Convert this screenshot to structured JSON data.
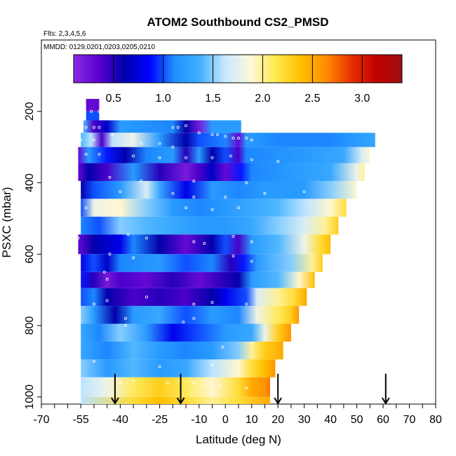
{
  "chart_data": {
    "type": "heatmap",
    "title": "ATOM2 Southbound CS2_PMSD",
    "flights_label": "Flts: 2,3,4,5,6",
    "dates_label": "MMDD: 0129,0201,0203,0205,0210",
    "xlabel": "Latitude (deg N)",
    "ylabel": "PSXC (mbar)",
    "xlim": [
      -70,
      80
    ],
    "ylim": [
      1020,
      0
    ],
    "x_ticks": [
      -70,
      -55,
      -40,
      -25,
      -10,
      0,
      10,
      20,
      30,
      40,
      50,
      60,
      70,
      80
    ],
    "y_ticks": [
      200,
      400,
      600,
      800,
      1000
    ],
    "colorbar": {
      "range": [
        0.1,
        3.4
      ],
      "ticks": [
        0.5,
        1.0,
        1.5,
        2.0,
        2.5,
        3.0
      ],
      "tick_labels": [
        "0.5",
        "1.0",
        "1.5",
        "2.0",
        "2.5",
        "3.0"
      ],
      "colors": [
        "#8a2be2",
        "#5a00d0",
        "#0000aa",
        "#0000ff",
        "#1e90ff",
        "#40b0ff",
        "#c8e8ff",
        "#fff8dc",
        "#ffe84d",
        "#ffc000",
        "#ff8c00",
        "#e83000",
        "#c00000",
        "#a01010"
      ]
    },
    "arrows_at_latitude": [
      -42,
      -17,
      20,
      61
    ],
    "layers": [
      {
        "p_top": 165,
        "p_bot": 200,
        "x_start": -53,
        "x_end": -48,
        "segments": [
          [
            -53,
            0.3
          ],
          [
            -48,
            0.3
          ]
        ]
      },
      {
        "p_top": 200,
        "p_bot": 225,
        "x_start": -53,
        "x_end": -48,
        "segments": [
          [
            -53,
            1.0
          ],
          [
            -48,
            1.0
          ]
        ]
      },
      {
        "p_top": 225,
        "p_bot": 260,
        "x_start": -54,
        "x_end": 6,
        "segments": [
          [
            -54,
            1.4
          ],
          [
            -50,
            0.4
          ],
          [
            -45,
            0.7
          ],
          [
            -40,
            1.2
          ],
          [
            -20,
            1.1
          ],
          [
            -15,
            0.6
          ],
          [
            -10,
            0.2
          ],
          [
            -5,
            1.2
          ],
          [
            0,
            1.2
          ],
          [
            6,
            1.2
          ]
        ]
      },
      {
        "p_top": 260,
        "p_bot": 300,
        "x_start": -55,
        "x_end": 57,
        "segments": [
          [
            -55,
            1.4
          ],
          [
            -51,
            1.6
          ],
          [
            -47,
            0.4
          ],
          [
            -43,
            1.6
          ],
          [
            -35,
            1.8
          ],
          [
            -25,
            1.2
          ],
          [
            -15,
            0.6
          ],
          [
            -10,
            1.0
          ],
          [
            0,
            1.1
          ],
          [
            5,
            0.3
          ],
          [
            8,
            1.2
          ],
          [
            20,
            1.1
          ],
          [
            40,
            1.1
          ],
          [
            50,
            1.2
          ],
          [
            57,
            1.3
          ]
        ]
      },
      {
        "p_top": 300,
        "p_bot": 345,
        "x_start": -56,
        "x_end": 55,
        "segments": [
          [
            -56,
            0.3
          ],
          [
            -52,
            1.2
          ],
          [
            -45,
            0.9
          ],
          [
            -38,
            0.6
          ],
          [
            -30,
            1.1
          ],
          [
            -20,
            1.2
          ],
          [
            -15,
            0.5
          ],
          [
            -10,
            1.2
          ],
          [
            -5,
            0.6
          ],
          [
            0,
            1.0
          ],
          [
            5,
            0.4
          ],
          [
            8,
            1.1
          ],
          [
            30,
            1.2
          ],
          [
            45,
            1.3
          ],
          [
            52,
            1.7
          ],
          [
            55,
            1.9
          ]
        ]
      },
      {
        "p_top": 345,
        "p_bot": 395,
        "x_start": -56,
        "x_end": 53,
        "segments": [
          [
            -56,
            0.3
          ],
          [
            -52,
            0.6
          ],
          [
            -45,
            0.4
          ],
          [
            -35,
            1.2
          ],
          [
            -25,
            0.5
          ],
          [
            -15,
            0.2
          ],
          [
            -10,
            0.4
          ],
          [
            -5,
            0.7
          ],
          [
            0,
            0.3
          ],
          [
            6,
            0.9
          ],
          [
            10,
            1.1
          ],
          [
            25,
            1.2
          ],
          [
            40,
            1.3
          ],
          [
            50,
            1.8
          ],
          [
            53,
            2.0
          ]
        ]
      },
      {
        "p_top": 395,
        "p_bot": 445,
        "x_start": -55,
        "x_end": 50,
        "segments": [
          [
            -55,
            0.6
          ],
          [
            -50,
            1.0
          ],
          [
            -40,
            1.2
          ],
          [
            -30,
            1.7
          ],
          [
            -25,
            1.3
          ],
          [
            -15,
            0.8
          ],
          [
            -5,
            1.2
          ],
          [
            5,
            1.1
          ],
          [
            15,
            1.2
          ],
          [
            30,
            1.2
          ],
          [
            40,
            1.5
          ],
          [
            50,
            1.9
          ]
        ]
      },
      {
        "p_top": 445,
        "p_bot": 495,
        "x_start": -55,
        "x_end": 46,
        "segments": [
          [
            -55,
            1.0
          ],
          [
            -50,
            1.8
          ],
          [
            -40,
            1.9
          ],
          [
            -30,
            1.5
          ],
          [
            -20,
            1.2
          ],
          [
            -10,
            1.1
          ],
          [
            0,
            1.2
          ],
          [
            10,
            1.3
          ],
          [
            20,
            1.4
          ],
          [
            30,
            1.6
          ],
          [
            40,
            1.9
          ],
          [
            46,
            2.2
          ]
        ]
      },
      {
        "p_top": 495,
        "p_bot": 545,
        "x_start": -55,
        "x_end": 43,
        "segments": [
          [
            -55,
            1.1
          ],
          [
            -48,
            1.0
          ],
          [
            -40,
            1.5
          ],
          [
            -30,
            1.4
          ],
          [
            -20,
            1.3
          ],
          [
            -10,
            1.2
          ],
          [
            0,
            1.2
          ],
          [
            10,
            1.3
          ],
          [
            20,
            1.5
          ],
          [
            30,
            1.7
          ],
          [
            38,
            2.0
          ],
          [
            43,
            2.3
          ]
        ]
      },
      {
        "p_top": 545,
        "p_bot": 600,
        "x_start": -56,
        "x_end": 40,
        "segments": [
          [
            -56,
            0.3
          ],
          [
            -50,
            0.6
          ],
          [
            -40,
            0.8
          ],
          [
            -35,
            1.1
          ],
          [
            -25,
            0.6
          ],
          [
            -15,
            0.3
          ],
          [
            -5,
            0.6
          ],
          [
            0,
            1.0
          ],
          [
            5,
            0.4
          ],
          [
            10,
            1.2
          ],
          [
            20,
            1.4
          ],
          [
            30,
            1.8
          ],
          [
            36,
            2.2
          ],
          [
            40,
            2.4
          ]
        ]
      },
      {
        "p_top": 600,
        "p_bot": 650,
        "x_start": -55,
        "x_end": 37,
        "segments": [
          [
            -55,
            0.8
          ],
          [
            -50,
            1.0
          ],
          [
            -45,
            0.7
          ],
          [
            -40,
            1.1
          ],
          [
            -25,
            1.2
          ],
          [
            -15,
            1.0
          ],
          [
            -5,
            1.1
          ],
          [
            2,
            0.5
          ],
          [
            7,
            0.9
          ],
          [
            12,
            1.2
          ],
          [
            25,
            1.5
          ],
          [
            33,
            2.0
          ],
          [
            37,
            2.3
          ]
        ]
      },
      {
        "p_top": 650,
        "p_bot": 695,
        "x_start": -55,
        "x_end": 34,
        "segments": [
          [
            -55,
            0.9
          ],
          [
            -50,
            0.5
          ],
          [
            -45,
            0.2
          ],
          [
            -40,
            0.4
          ],
          [
            -30,
            0.3
          ],
          [
            -20,
            0.5
          ],
          [
            -10,
            0.3
          ],
          [
            0,
            0.5
          ],
          [
            5,
            0.6
          ],
          [
            10,
            1.2
          ],
          [
            20,
            1.4
          ],
          [
            28,
            1.9
          ],
          [
            34,
            2.4
          ]
        ]
      },
      {
        "p_top": 695,
        "p_bot": 745,
        "x_start": -55,
        "x_end": 31,
        "segments": [
          [
            -55,
            1.0
          ],
          [
            -50,
            1.1
          ],
          [
            -45,
            0.6
          ],
          [
            -35,
            0.4
          ],
          [
            -25,
            0.5
          ],
          [
            -15,
            0.4
          ],
          [
            -5,
            0.6
          ],
          [
            0,
            0.8
          ],
          [
            8,
            1.0
          ],
          [
            12,
            1.7
          ],
          [
            20,
            2.0
          ],
          [
            26,
            2.2
          ],
          [
            31,
            2.5
          ]
        ]
      },
      {
        "p_top": 745,
        "p_bot": 795,
        "x_start": -55,
        "x_end": 28,
        "segments": [
          [
            -55,
            1.5
          ],
          [
            -50,
            1.2
          ],
          [
            -42,
            0.6
          ],
          [
            -35,
            1.2
          ],
          [
            -25,
            1.3
          ],
          [
            -15,
            1.0
          ],
          [
            -5,
            1.2
          ],
          [
            5,
            1.1
          ],
          [
            12,
            1.8
          ],
          [
            20,
            2.1
          ],
          [
            25,
            2.3
          ],
          [
            28,
            2.6
          ]
        ]
      },
      {
        "p_top": 795,
        "p_bot": 845,
        "x_start": -55,
        "x_end": 25,
        "segments": [
          [
            -55,
            1.3
          ],
          [
            -48,
            1.1
          ],
          [
            -40,
            1.5
          ],
          [
            -30,
            1.2
          ],
          [
            -20,
            0.8
          ],
          [
            -10,
            1.0
          ],
          [
            0,
            1.2
          ],
          [
            10,
            1.3
          ],
          [
            15,
            1.8
          ],
          [
            20,
            2.3
          ],
          [
            25,
            2.6
          ]
        ]
      },
      {
        "p_top": 845,
        "p_bot": 895,
        "x_start": -55,
        "x_end": 22,
        "segments": [
          [
            -55,
            1.3
          ],
          [
            -45,
            1.1
          ],
          [
            -35,
            1.4
          ],
          [
            -25,
            1.2
          ],
          [
            -15,
            1.1
          ],
          [
            -5,
            1.2
          ],
          [
            5,
            1.5
          ],
          [
            10,
            2.0
          ],
          [
            15,
            2.3
          ],
          [
            22,
            2.5
          ]
        ]
      },
      {
        "p_top": 895,
        "p_bot": 945,
        "x_start": -55,
        "x_end": 19,
        "segments": [
          [
            -55,
            1.5
          ],
          [
            -45,
            1.2
          ],
          [
            -35,
            1.4
          ],
          [
            -25,
            1.2
          ],
          [
            -15,
            1.3
          ],
          [
            -5,
            1.6
          ],
          [
            5,
            1.9
          ],
          [
            10,
            2.2
          ],
          [
            15,
            2.4
          ],
          [
            19,
            2.6
          ]
        ]
      },
      {
        "p_top": 945,
        "p_bot": 1000,
        "x_start": -55,
        "x_end": 17,
        "segments": [
          [
            -55,
            1.6
          ],
          [
            -45,
            1.8
          ],
          [
            -35,
            2.1
          ],
          [
            -25,
            2.3
          ],
          [
            -15,
            2.1
          ],
          [
            -5,
            1.9
          ],
          [
            5,
            2.2
          ],
          [
            10,
            2.5
          ],
          [
            15,
            2.6
          ],
          [
            17,
            2.7
          ]
        ]
      },
      {
        "p_top": 1000,
        "p_bot": 1020,
        "x_start": -55,
        "x_end": 17,
        "segments": [
          [
            -55,
            1.6
          ],
          [
            -35,
            2.2
          ],
          [
            -25,
            2.4
          ],
          [
            -15,
            2.2
          ],
          [
            -5,
            2.0
          ],
          [
            5,
            2.2
          ],
          [
            17,
            2.5
          ]
        ]
      }
    ],
    "sample_points": [
      [
        -51,
        200
      ],
      [
        -48,
        200
      ],
      [
        -46,
        200
      ],
      [
        -42,
        200
      ],
      [
        -40,
        200
      ],
      [
        -53,
        245
      ],
      [
        -50,
        245
      ],
      [
        -48,
        245
      ],
      [
        -43,
        265
      ],
      [
        -20,
        245
      ],
      [
        -18,
        245
      ],
      [
        -15,
        240
      ],
      [
        -10,
        260
      ],
      [
        -5,
        265
      ],
      [
        -3,
        265
      ],
      [
        0,
        270
      ],
      [
        3,
        275
      ],
      [
        5,
        275
      ],
      [
        8,
        275
      ],
      [
        10,
        280
      ],
      [
        -55,
        280
      ],
      [
        -50,
        280
      ],
      [
        -32,
        290
      ],
      [
        -25,
        290
      ],
      [
        -20,
        300
      ],
      [
        -53,
        320
      ],
      [
        -48,
        320
      ],
      [
        -35,
        325
      ],
      [
        -25,
        330
      ],
      [
        -15,
        330
      ],
      [
        -5,
        330
      ],
      [
        2,
        325
      ],
      [
        10,
        335
      ],
      [
        20,
        340
      ],
      [
        -44,
        385
      ],
      [
        -32,
        395
      ],
      [
        -12,
        395
      ],
      [
        8,
        400
      ],
      [
        -40,
        425
      ],
      [
        -20,
        430
      ],
      [
        -12,
        440
      ],
      [
        0,
        440
      ],
      [
        15,
        430
      ],
      [
        30,
        425
      ],
      [
        -53,
        470
      ],
      [
        -40,
        475
      ],
      [
        -15,
        470
      ],
      [
        -5,
        475
      ],
      [
        5,
        470
      ],
      [
        -56,
        555
      ],
      [
        -37,
        545
      ],
      [
        -30,
        555
      ],
      [
        -12,
        565
      ],
      [
        -8,
        570
      ],
      [
        3,
        550
      ],
      [
        10,
        565
      ],
      [
        -44,
        600
      ],
      [
        -35,
        610
      ],
      [
        3,
        605
      ],
      [
        10,
        620
      ],
      [
        -46,
        650
      ],
      [
        -45,
        670
      ],
      [
        -50,
        740
      ],
      [
        -45,
        730
      ],
      [
        -30,
        720
      ],
      [
        -12,
        740
      ],
      [
        -5,
        735
      ],
      [
        8,
        740
      ],
      [
        -38,
        780
      ],
      [
        -38,
        800
      ],
      [
        -16,
        790
      ],
      [
        -12,
        780
      ],
      [
        -1,
        860
      ],
      [
        10,
        850
      ],
      [
        -50,
        900
      ],
      [
        -25,
        915
      ],
      [
        -5,
        910
      ],
      [
        -40,
        960
      ],
      [
        -35,
        955
      ],
      [
        -22,
        960
      ],
      [
        -12,
        960
      ],
      [
        -8,
        965
      ],
      [
        -2,
        970
      ],
      [
        8,
        975
      ]
    ]
  }
}
